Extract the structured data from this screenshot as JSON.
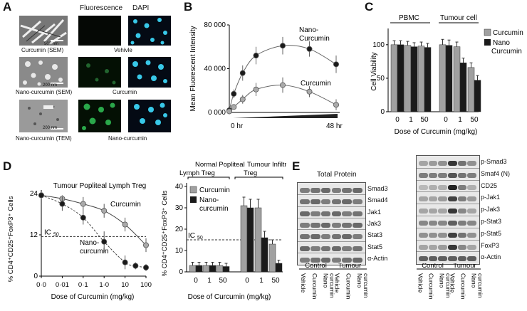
{
  "panelA": {
    "letter": "A",
    "col_fluor": "Fluorescence",
    "col_dapi": "DAPI",
    "row_labels": [
      "Curcumin (SEM)",
      "Nano-curcumin (SEM)",
      "Nano-curcumin (TEM)"
    ],
    "scale_bars": [
      "500 nm",
      "200 nm",
      "200 nm"
    ],
    "group_labels": [
      "Vehivle",
      "Curcumin",
      "Nano-curcumin"
    ],
    "colors": {
      "dapi": "#38c8e8",
      "fluor": "#2aa84a"
    }
  },
  "panelB": {
    "letter": "B",
    "chart_data": {
      "type": "line",
      "ylabel": "Mean Fluorescent Intensity",
      "yticks": [
        "0 000",
        "40 000",
        "80 000"
      ],
      "ylim": [
        0,
        80000
      ],
      "x_labels": [
        "0 hr",
        "48 hr"
      ],
      "series": [
        {
          "name": "Nano-\nCurcumin",
          "label_lines": [
            "Nano-",
            "Curcumin"
          ],
          "x": [
            0,
            2,
            6,
            12,
            24,
            36,
            48
          ],
          "y": [
            2000,
            17000,
            36000,
            52000,
            61000,
            58000,
            44000
          ],
          "err": [
            1000,
            4000,
            7000,
            8000,
            8000,
            7000,
            8000
          ],
          "color": "#1a1a1a"
        },
        {
          "name": "Curcumin",
          "label_lines": [
            "Curcumin"
          ],
          "x": [
            0,
            2,
            6,
            12,
            24,
            36,
            48
          ],
          "y": [
            1000,
            5000,
            12000,
            21000,
            25000,
            19000,
            7000
          ],
          "err": [
            500,
            2000,
            4000,
            6000,
            7000,
            5000,
            5000
          ],
          "color": "#aaaaaa"
        }
      ]
    }
  },
  "panelC": {
    "letter": "C",
    "chart_data": {
      "type": "bar",
      "ylabel": "Cell Viability",
      "xlabel": "Dose of Curcumin (mg/kg)",
      "group_labels": [
        "PBMC",
        "Tumour cell"
      ],
      "categories": [
        "0",
        "1",
        "50",
        "0",
        "1",
        "50"
      ],
      "ylim": [
        0,
        120
      ],
      "yticks": [
        "0",
        "50",
        "100"
      ],
      "series": [
        {
          "name": "Curcumin",
          "values": [
            100,
            99,
            98,
            100,
            97,
            66
          ],
          "err": [
            6,
            6,
            6,
            8,
            7,
            7
          ],
          "color": "#a0a0a0"
        },
        {
          "name": "Nano\nCurcumin",
          "label_lines": [
            "Nano",
            "Curcumin"
          ],
          "values": [
            100,
            97,
            96,
            99,
            73,
            47
          ],
          "err": [
            6,
            6,
            6,
            8,
            7,
            7
          ],
          "color": "#1a1a1a"
        }
      ]
    }
  },
  "panelD": {
    "letter": "D",
    "left_chart": {
      "type": "line",
      "title": "Tumour Popliteal Lymph Treg",
      "ylabel": "% CD4⁺CD25⁺FoxP3⁺ Cells",
      "xlabel": "Dose of Curcumin (mg/kg)",
      "xticks": [
        "0·0",
        "0·01",
        "0·1",
        "1·0",
        "10",
        "100"
      ],
      "yticks": [
        "0",
        "12",
        "24"
      ],
      "ylim": [
        0,
        24
      ],
      "ic50_label": "IC",
      "ic50_sub": "50",
      "ic50_value": 11.5,
      "series": [
        {
          "name": "Curcumin",
          "x": [
            0,
            1,
            2,
            3,
            4,
            5
          ],
          "y": [
            23.5,
            22.5,
            21,
            19,
            15,
            9
          ],
          "err": [
            1,
            1,
            2,
            2,
            2,
            2
          ],
          "color": "#aaaaaa"
        },
        {
          "name": "Nano-\ncurcumin",
          "label_lines": [
            "Nano-",
            "curcumin"
          ],
          "x": [
            0,
            1,
            2,
            3,
            4,
            4.5,
            5
          ],
          "y": [
            23.5,
            21,
            17,
            10,
            4,
            3,
            2.5
          ],
          "err": [
            1,
            2,
            2,
            3,
            2,
            1,
            1
          ],
          "color": "#1a1a1a"
        }
      ]
    },
    "right_chart": {
      "type": "bar",
      "header_left": [
        "Normal Popliteal",
        "Lymph Treg"
      ],
      "header_right": [
        "Tumour Infiltrating",
        "Treg"
      ],
      "ylabel": "% CD4⁺CD25⁺FoxP3⁺ Cells",
      "xlabel": "Dose of Curcumin (mg/kg)",
      "categories": [
        "0",
        "1",
        "50",
        "0",
        "1",
        "50"
      ],
      "yticks": [
        "0",
        "10",
        "20",
        "30",
        "40"
      ],
      "ylim": [
        0,
        40
      ],
      "ic50_label": "IC",
      "ic50_sub": "50",
      "ic50_value": 15,
      "series": [
        {
          "name": "Curcumin",
          "values": [
            3,
            3,
            3,
            31,
            30,
            13
          ],
          "err": [
            1.5,
            1.5,
            1.5,
            4,
            4,
            2
          ],
          "color": "#a0a0a0"
        },
        {
          "name": "Nano-\ncurcumin",
          "label_lines": [
            "Nano-",
            "curcumin"
          ],
          "values": [
            3,
            3,
            2.5,
            30,
            16,
            4
          ],
          "err": [
            1.5,
            1.5,
            1.5,
            4,
            3,
            1.5
          ],
          "color": "#1a1a1a"
        }
      ]
    }
  },
  "panelE": {
    "letter": "E",
    "title": "Total Protein",
    "left_labels": [
      "Smad3",
      "Smad4",
      "Jak1",
      "Jak3",
      "Stat3",
      "Stat5",
      "α-Actin"
    ],
    "right_labels": [
      "p-Smad3",
      "Smaf4 (N)",
      "CD25",
      "p-Jak1",
      "p-Jak3",
      "p-Stat3",
      "p-Stat5",
      "FoxP3",
      "α-Actin"
    ],
    "group_labels": [
      "Control",
      "Tumour"
    ],
    "lane_labels": [
      "Vehicle",
      "Curcumin",
      "Nano curcumin",
      "Vehicle",
      "Curcumin",
      "Nano curcumin"
    ],
    "lane_lines": [
      [
        "Vehicle"
      ],
      [
        "Curcumin"
      ],
      [
        "Nano",
        "curcumin"
      ],
      [
        "Vehicle"
      ],
      [
        "Curcumin"
      ],
      [
        "Nano",
        "curcumin"
      ]
    ],
    "right_intensity": [
      [
        0.35,
        0.4,
        0.45,
        0.9,
        0.6,
        0.45
      ],
      [
        0.55,
        0.55,
        0.55,
        0.75,
        0.6,
        0.55
      ],
      [
        0.25,
        0.3,
        0.3,
        1.0,
        0.55,
        0.3
      ],
      [
        0.35,
        0.35,
        0.4,
        0.85,
        0.55,
        0.4
      ],
      [
        0.35,
        0.35,
        0.35,
        0.9,
        0.5,
        0.35
      ],
      [
        0.5,
        0.5,
        0.5,
        0.7,
        0.55,
        0.5
      ],
      [
        0.45,
        0.45,
        0.45,
        0.85,
        0.6,
        0.45
      ],
      [
        0.35,
        0.35,
        0.4,
        0.9,
        0.5,
        0.35
      ],
      [
        0.7,
        0.7,
        0.7,
        0.7,
        0.7,
        0.7
      ]
    ]
  }
}
